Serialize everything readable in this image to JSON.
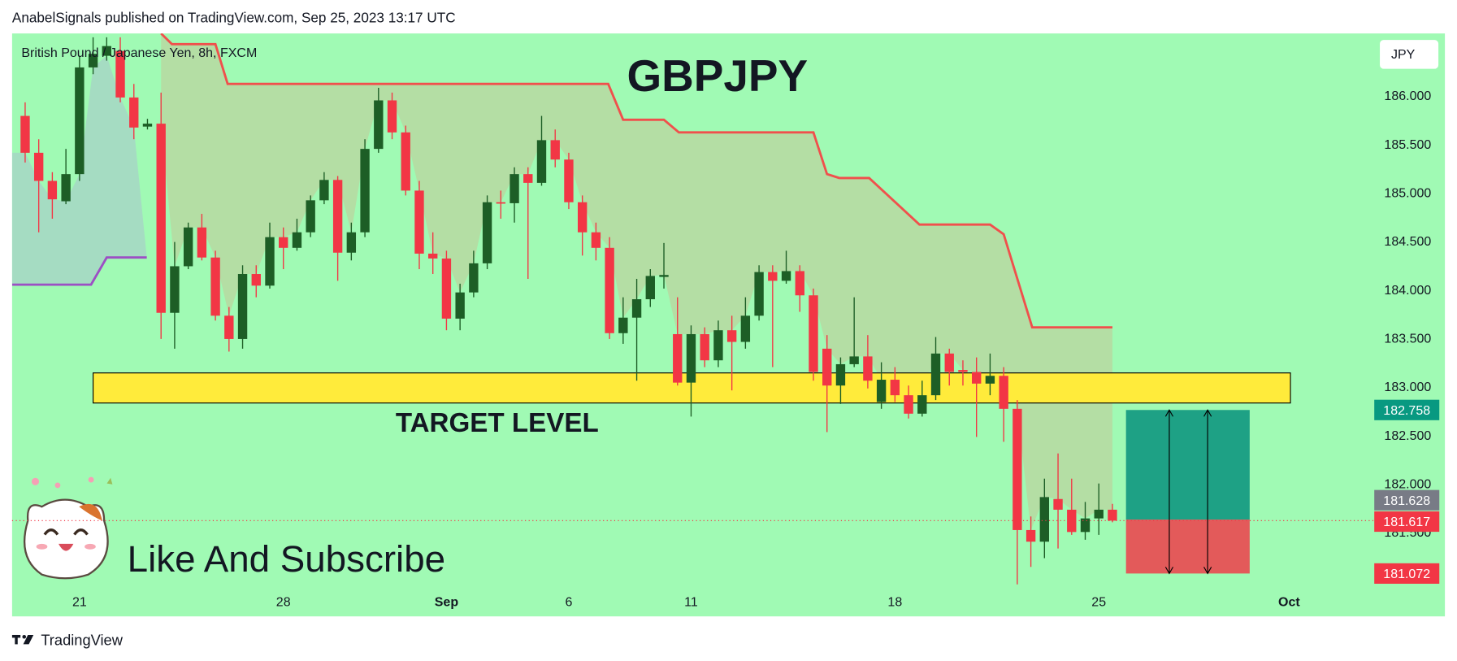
{
  "chart_data": {
    "type": "candlestick",
    "header": "AnabelSignals published on TradingView.com, Sep 25, 2023 13:17 UTC",
    "symbol": "British Pound / Japanese Yen, 8h, FXCM",
    "title": "GBPJPY",
    "currency": "JPY",
    "annotation": "Like And Subscribe",
    "footer": "TradingView",
    "up_color": "#1d5e26",
    "down_color": "#f23645",
    "candles": [
      [
        185.79,
        185.93,
        185.31,
        185.41
      ],
      [
        185.41,
        185.55,
        184.59,
        185.12
      ],
      [
        185.12,
        185.21,
        184.73,
        184.93
      ],
      [
        184.91,
        185.45,
        184.88,
        185.19
      ],
      [
        185.19,
        186.41,
        185.12,
        186.29
      ],
      [
        186.29,
        186.6,
        186.22,
        186.43
      ],
      [
        186.41,
        186.6,
        186.36,
        186.51
      ],
      [
        186.46,
        186.6,
        185.93,
        185.98
      ],
      [
        185.98,
        186.12,
        185.55,
        185.67
      ],
      [
        185.68,
        185.76,
        185.65,
        185.71
      ],
      [
        185.71,
        186.03,
        183.49,
        183.76
      ],
      [
        183.76,
        184.49,
        183.39,
        184.24
      ],
      [
        184.24,
        184.69,
        184.21,
        184.64
      ],
      [
        184.64,
        184.78,
        184.3,
        184.33
      ],
      [
        184.33,
        184.4,
        183.68,
        183.73
      ],
      [
        183.73,
        183.82,
        183.36,
        183.49
      ],
      [
        183.49,
        184.25,
        183.39,
        184.16
      ],
      [
        184.16,
        184.25,
        183.92,
        184.04
      ],
      [
        184.04,
        184.69,
        184.01,
        184.54
      ],
      [
        184.54,
        184.64,
        184.21,
        184.43
      ],
      [
        184.43,
        184.73,
        184.4,
        184.59
      ],
      [
        184.59,
        184.97,
        184.54,
        184.92
      ],
      [
        184.92,
        185.21,
        184.88,
        185.13
      ],
      [
        185.13,
        185.17,
        184.09,
        184.38
      ],
      [
        184.38,
        184.69,
        184.3,
        184.59
      ],
      [
        184.59,
        185.55,
        184.54,
        185.45
      ],
      [
        185.45,
        186.08,
        185.41,
        185.95
      ],
      [
        185.95,
        186.03,
        185.55,
        185.62
      ],
      [
        185.62,
        185.69,
        184.97,
        185.02
      ],
      [
        185.02,
        185.12,
        184.21,
        184.37
      ],
      [
        184.37,
        184.59,
        184.16,
        184.32
      ],
      [
        184.32,
        184.4,
        183.58,
        183.7
      ],
      [
        183.7,
        184.06,
        183.58,
        183.97
      ],
      [
        183.97,
        184.4,
        183.92,
        184.27
      ],
      [
        184.27,
        184.97,
        184.21,
        184.9
      ],
      [
        184.9,
        185.02,
        184.73,
        184.89
      ],
      [
        184.89,
        185.26,
        184.69,
        185.19
      ],
      [
        185.19,
        185.26,
        184.11,
        185.1
      ],
      [
        185.1,
        185.79,
        185.07,
        185.54
      ],
      [
        185.54,
        185.65,
        185.26,
        185.34
      ],
      [
        185.34,
        185.41,
        184.83,
        184.9
      ],
      [
        184.9,
        184.97,
        184.35,
        184.59
      ],
      [
        184.59,
        184.69,
        184.3,
        184.43
      ],
      [
        184.43,
        184.54,
        183.49,
        183.55
      ],
      [
        183.55,
        183.92,
        183.44,
        183.71
      ],
      [
        183.71,
        184.11,
        183.06,
        183.9
      ],
      [
        183.9,
        184.21,
        183.82,
        184.14
      ],
      [
        184.13,
        184.48,
        184.01,
        184.15
      ],
      [
        183.54,
        183.92,
        183.01,
        183.04
      ],
      [
        183.04,
        183.63,
        182.69,
        183.54
      ],
      [
        183.54,
        183.61,
        183.2,
        183.27
      ],
      [
        183.27,
        183.68,
        183.2,
        183.58
      ],
      [
        183.58,
        183.73,
        182.96,
        183.46
      ],
      [
        183.46,
        183.92,
        183.39,
        183.73
      ],
      [
        183.73,
        184.25,
        183.68,
        184.18
      ],
      [
        184.18,
        184.25,
        183.2,
        184.09
      ],
      [
        184.09,
        184.4,
        184.06,
        184.19
      ],
      [
        184.19,
        184.25,
        183.77,
        183.94
      ],
      [
        183.94,
        184.01,
        183.06,
        183.15
      ],
      [
        183.39,
        183.53,
        182.53,
        183.01
      ],
      [
        183.01,
        183.3,
        182.82,
        183.23
      ],
      [
        183.23,
        183.92,
        183.2,
        183.31
      ],
      [
        183.31,
        183.53,
        182.98,
        183.06
      ],
      [
        182.84,
        183.25,
        182.77,
        183.07
      ],
      [
        183.07,
        183.2,
        182.84,
        182.91
      ],
      [
        182.91,
        183.01,
        182.67,
        182.72
      ],
      [
        182.72,
        183.06,
        182.69,
        182.91
      ],
      [
        182.91,
        183.51,
        182.86,
        183.34
      ],
      [
        183.34,
        183.39,
        183.01,
        183.15
      ],
      [
        183.17,
        183.27,
        183.01,
        183.15
      ],
      [
        183.15,
        183.3,
        182.48,
        183.03
      ],
      [
        183.03,
        183.34,
        182.91,
        183.11
      ],
      [
        183.11,
        183.2,
        182.43,
        182.77
      ],
      [
        182.77,
        182.86,
        180.96,
        181.52
      ],
      [
        181.52,
        181.66,
        181.14,
        181.4
      ],
      [
        181.4,
        182.05,
        181.23,
        181.86
      ],
      [
        181.84,
        182.31,
        181.33,
        181.73
      ],
      [
        181.73,
        182.05,
        181.47,
        181.5
      ],
      [
        181.5,
        181.81,
        181.42,
        181.64
      ],
      [
        181.64,
        182.0,
        181.47,
        181.73
      ],
      [
        181.73,
        181.79,
        181.6,
        181.617
      ]
    ],
    "xlim": [
      -0.96,
      99.2
    ],
    "xticks": [
      {
        "value": 4,
        "label": "21"
      },
      {
        "value": 19,
        "label": "28"
      },
      {
        "value": 31,
        "label": "Sep"
      },
      {
        "value": 40,
        "label": "6"
      },
      {
        "value": 49,
        "label": "11"
      },
      {
        "value": 64,
        "label": "18"
      },
      {
        "value": 79,
        "label": "25"
      },
      {
        "value": 93,
        "label": "Oct"
      }
    ],
    "ylim": [
      180.63,
      186.64
    ],
    "yticks": [
      {
        "value": 186,
        "label": "186.000"
      },
      {
        "value": 185.5,
        "label": "185.500"
      },
      {
        "value": 185,
        "label": "185.000"
      },
      {
        "value": 184.5,
        "label": "184.500"
      },
      {
        "value": 184,
        "label": "184.000"
      },
      {
        "value": 183.5,
        "label": "183.500"
      },
      {
        "value": 183,
        "label": "183.000"
      },
      {
        "value": 182.5,
        "label": "182.500"
      },
      {
        "value": 182,
        "label": "182.000"
      },
      {
        "value": 181.5,
        "label": "181.500"
      }
    ],
    "stop_line": {
      "color": "#f0504c",
      "points": [
        [
          10,
          186.64
        ],
        [
          10.8,
          186.53
        ],
        [
          14,
          186.53
        ],
        [
          14.9,
          186.12
        ],
        [
          42.9,
          186.12
        ],
        [
          44,
          185.75
        ],
        [
          47,
          185.75
        ],
        [
          48.1,
          185.62
        ],
        [
          58,
          185.62
        ],
        [
          59,
          185.19
        ],
        [
          59.9,
          185.15
        ],
        [
          62.1,
          185.15
        ],
        [
          65.8,
          184.67
        ],
        [
          71,
          184.67
        ],
        [
          72,
          184.57
        ],
        [
          74.1,
          183.61
        ],
        [
          80,
          183.61
        ]
      ]
    },
    "support_line": {
      "color": "#9c4fc4",
      "points": [
        [
          -0.96,
          184.05
        ],
        [
          4.85,
          184.05
        ],
        [
          6,
          184.33
        ],
        [
          8.95,
          184.33
        ]
      ]
    },
    "target_zone": {
      "label": "TARGET LEVEL",
      "color": "#ffeb3b",
      "x": [
        5,
        93.1
      ],
      "y": [
        182.83,
        183.14
      ]
    },
    "position": {
      "x": [
        81,
        90.1
      ],
      "target": 182.758,
      "entry": 181.628,
      "stop": 181.072,
      "target_color": "#089981",
      "entry_color": "#787b86",
      "stop_color": "#f23645"
    }
  }
}
